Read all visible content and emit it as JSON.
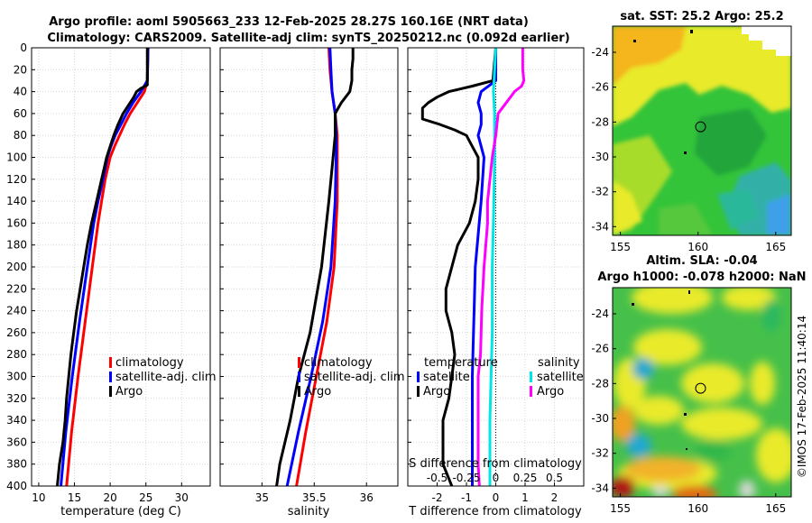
{
  "titles": {
    "line1": "Argo profile: aoml 5905663_233 12-Feb-2025 28.27S 160.16E (NRT data)",
    "line2": "Climatology: CARS2009. Satellite-adj clim: synTS_20250212.nc (0.092d earlier)",
    "sst": "sat. SST: 25.2 Argo: 25.2",
    "sla1": "Altim. SLA: -0.04",
    "sla2": "Argo h1000: -0.078 h2000: NaN",
    "footer": "©IMOS 17-Feb-2025 11:40:14"
  },
  "colors": {
    "clim": "#ff0000",
    "sat": "#0000ff",
    "argo": "#000000",
    "sat_s": "#00e5e5",
    "argo_s": "#ff00ff"
  },
  "chart_data": [
    {
      "id": "temperature",
      "type": "line",
      "xlabel": "temperature (deg C)",
      "xlim": [
        9,
        34
      ],
      "xticks": [
        10,
        15,
        20,
        25,
        30
      ],
      "ylim": [
        0,
        400
      ],
      "yticks": [
        0,
        20,
        40,
        60,
        80,
        100,
        120,
        140,
        160,
        180,
        200,
        220,
        240,
        260,
        280,
        300,
        320,
        340,
        360,
        380,
        400
      ],
      "legend": {
        "position": "lower-right",
        "entries": [
          "climatology",
          "satellite-adj. clim",
          "Argo"
        ]
      },
      "series": [
        {
          "name": "climatology",
          "color": "clim",
          "depth": [
            0,
            30,
            40,
            50,
            60,
            70,
            80,
            90,
            100,
            120,
            140,
            160,
            200,
            250,
            300,
            350,
            400
          ],
          "values": [
            25.3,
            25.2,
            24.8,
            23.8,
            22.8,
            22.0,
            21.3,
            20.6,
            20.0,
            19.3,
            18.8,
            18.3,
            17.5,
            16.5,
            15.5,
            14.6,
            13.9
          ]
        },
        {
          "name": "satellite-adj. clim",
          "color": "sat",
          "depth": [
            0,
            30,
            40,
            50,
            60,
            70,
            80,
            90,
            100,
            120,
            140,
            160,
            200,
            250,
            300,
            350,
            400
          ],
          "values": [
            25.3,
            25.2,
            24.3,
            23.2,
            22.3,
            21.5,
            20.7,
            20.1,
            19.6,
            19.0,
            18.3,
            17.7,
            16.8,
            15.7,
            14.7,
            13.8,
            13.1
          ]
        },
        {
          "name": "Argo",
          "color": "argo",
          "depth": [
            0,
            34,
            37,
            40,
            45,
            50,
            60,
            70,
            80,
            90,
            100,
            120,
            140,
            160,
            180,
            200,
            220,
            240,
            260,
            280,
            300,
            320,
            340,
            360,
            380,
            400
          ],
          "values": [
            25.2,
            25.2,
            24.3,
            23.7,
            23.3,
            22.8,
            21.8,
            21.1,
            20.5,
            20.0,
            19.5,
            18.8,
            18.1,
            17.4,
            16.8,
            16.3,
            15.8,
            15.3,
            14.9,
            14.5,
            14.2,
            13.9,
            13.7,
            13.4,
            12.9,
            12.6
          ]
        }
      ]
    },
    {
      "id": "salinity",
      "type": "line",
      "xlabel": "salinity",
      "xlim": [
        34.6,
        36.3
      ],
      "xticks": [
        35,
        35.5,
        36
      ],
      "ylim": [
        0,
        400
      ],
      "legend": {
        "position": "lower-right",
        "entries": [
          "climatology",
          "satellite-adj. clim",
          "Argo"
        ]
      },
      "series": [
        {
          "name": "climatology",
          "color": "clim",
          "depth": [
            0,
            20,
            40,
            60,
            80,
            100,
            140,
            200,
            250,
            300,
            350,
            400
          ],
          "values": [
            35.64,
            35.65,
            35.67,
            35.7,
            35.72,
            35.72,
            35.72,
            35.69,
            35.62,
            35.52,
            35.42,
            35.33
          ]
        },
        {
          "name": "satellite-adj. clim",
          "color": "sat",
          "depth": [
            0,
            20,
            40,
            60,
            80,
            100,
            140,
            200,
            250,
            300,
            350,
            400
          ],
          "values": [
            35.65,
            35.66,
            35.67,
            35.7,
            35.71,
            35.71,
            35.7,
            35.66,
            35.58,
            35.47,
            35.35,
            35.24
          ]
        },
        {
          "name": "Argo",
          "color": "argo",
          "depth": [
            0,
            10,
            20,
            30,
            40,
            50,
            60,
            80,
            100,
            140,
            200,
            260,
            300,
            340,
            380,
            400
          ],
          "values": [
            35.87,
            35.87,
            35.86,
            35.86,
            35.84,
            35.76,
            35.7,
            35.7,
            35.68,
            35.64,
            35.57,
            35.46,
            35.35,
            35.27,
            35.17,
            35.14
          ]
        }
      ]
    },
    {
      "id": "difference",
      "type": "line",
      "xlabel": "T difference from climatology",
      "xlabel2": "S difference from climatology",
      "xlim": [
        -3,
        3
      ],
      "xticks": [
        -2,
        -1,
        0,
        1,
        2
      ],
      "xlim_s": [
        -0.75,
        0.75
      ],
      "xticks_s": [
        -0.5,
        -0.25,
        0,
        0.25,
        0.5
      ],
      "ylim": [
        0,
        400
      ],
      "legend_t": {
        "title": "temperature",
        "entries": [
          "satellite",
          "Argo"
        ]
      },
      "legend_s": {
        "title": "salinity",
        "entries": [
          "satellite",
          "Argo"
        ]
      },
      "series": [
        {
          "name": "T satellite",
          "color": "sat",
          "axis": "t",
          "depth": [
            0,
            30,
            40,
            50,
            60,
            70,
            80,
            90,
            100,
            140,
            200,
            300,
            400
          ],
          "values": [
            0,
            0,
            -0.5,
            -0.6,
            -0.5,
            -0.5,
            -0.6,
            -0.5,
            -0.4,
            -0.5,
            -0.7,
            -0.8,
            -0.8
          ]
        },
        {
          "name": "T Argo",
          "color": "argo",
          "axis": "t",
          "depth": [
            0,
            30,
            35,
            40,
            45,
            50,
            55,
            60,
            65,
            70,
            75,
            80,
            90,
            100,
            120,
            140,
            160,
            180,
            200,
            220,
            240,
            260,
            280,
            300,
            320,
            340,
            360,
            380,
            400
          ],
          "values": [
            0,
            -0.1,
            -0.8,
            -1.6,
            -2.0,
            -2.3,
            -2.5,
            -2.5,
            -2.5,
            -1.9,
            -1.4,
            -1.0,
            -0.8,
            -0.6,
            -0.6,
            -0.7,
            -0.9,
            -1.3,
            -1.5,
            -1.7,
            -1.7,
            -1.5,
            -1.4,
            -1.5,
            -1.6,
            -1.8,
            -1.8,
            -1.8,
            -1.5
          ]
        },
        {
          "name": "S satellite",
          "color": "sat_s",
          "axis": "s",
          "depth": [
            0,
            40,
            60,
            100,
            160,
            200,
            260,
            300,
            340,
            400
          ],
          "values": [
            0,
            -0.02,
            -0.01,
            -0.01,
            -0.02,
            -0.03,
            -0.03,
            -0.04,
            -0.05,
            -0.05
          ]
        },
        {
          "name": "S Argo",
          "color": "argo_s",
          "axis": "s",
          "depth": [
            0,
            20,
            30,
            35,
            40,
            50,
            60,
            80,
            100,
            120,
            140,
            160,
            200,
            240,
            280,
            300,
            340,
            380,
            400
          ],
          "values": [
            0.23,
            0.23,
            0.24,
            0.22,
            0.16,
            0.09,
            0.02,
            0.0,
            -0.03,
            -0.05,
            -0.07,
            -0.07,
            -0.1,
            -0.12,
            -0.13,
            -0.15,
            -0.15,
            -0.15,
            -0.14
          ]
        }
      ]
    },
    {
      "id": "sst_map",
      "type": "heatmap",
      "title": "sat. SST: 25.2 Argo: 25.2",
      "xlim": [
        154.5,
        166
      ],
      "ylim": [
        -34.5,
        -22.5
      ],
      "xticks": [
        155,
        160,
        165
      ],
      "yticks": [
        -24,
        -26,
        -28,
        -30,
        -32,
        -34
      ],
      "argo_position": {
        "lon": 160.16,
        "lat": -28.27
      }
    },
    {
      "id": "sla_map",
      "type": "heatmap",
      "title": "Altim. SLA: -0.04",
      "subtitle": "Argo h1000: -0.078 h2000: NaN",
      "xlim": [
        154.5,
        166
      ],
      "ylim": [
        -34.5,
        -22.5
      ],
      "xticks": [
        155,
        160,
        165
      ],
      "yticks": [
        -24,
        -26,
        -28,
        -30,
        -32,
        -34
      ],
      "argo_position": {
        "lon": 160.16,
        "lat": -28.27
      }
    }
  ]
}
